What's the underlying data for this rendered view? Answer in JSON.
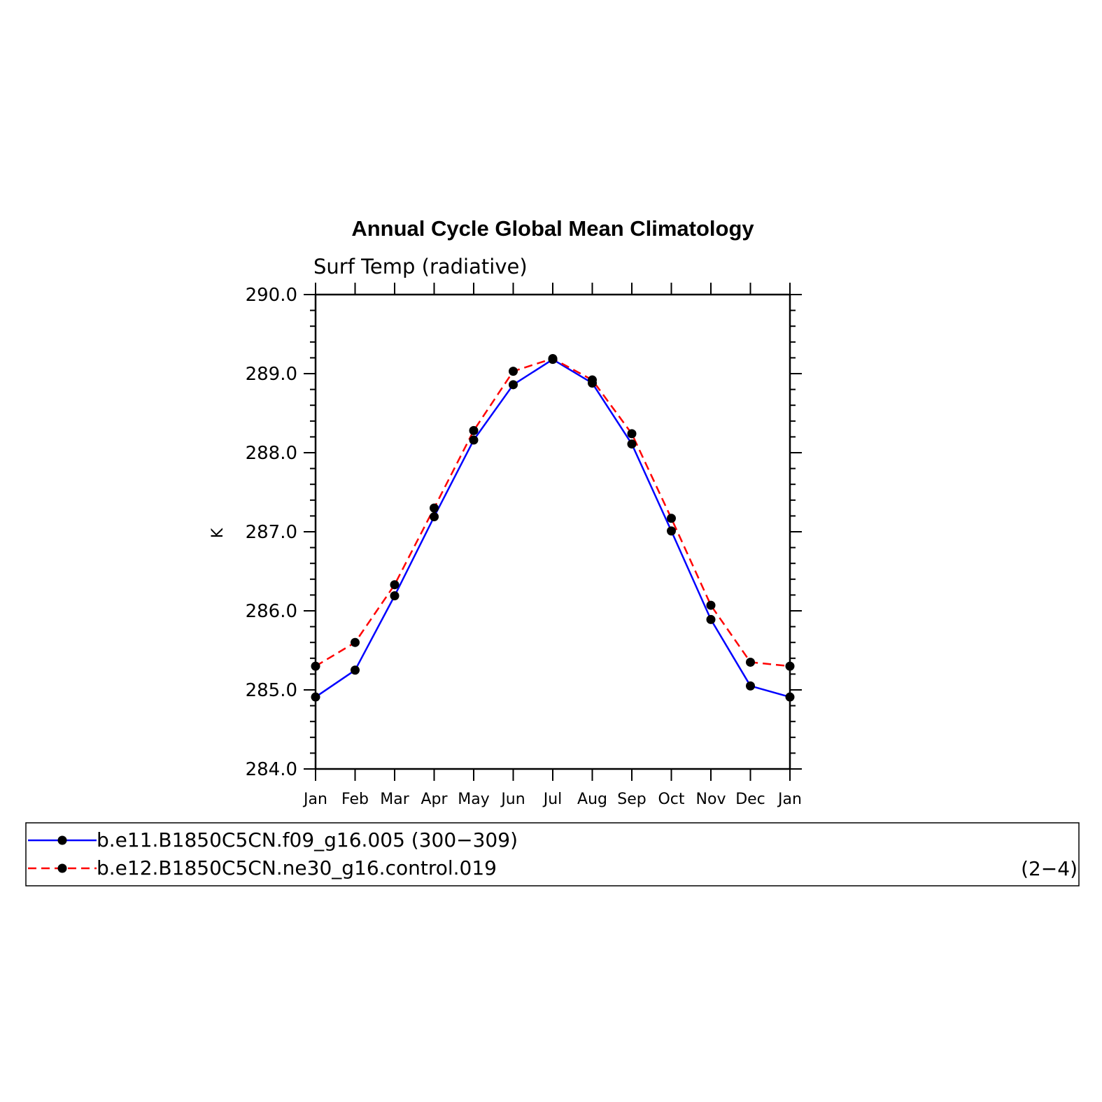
{
  "chart_data": {
    "type": "line",
    "title": "Annual Cycle Global Mean Climatology",
    "subtitle": "Surf Temp (radiative)",
    "ylabel": "K",
    "xlabel": "",
    "ylim": [
      284.0,
      290.0
    ],
    "yticks": [
      "290.0",
      "289.0",
      "288.0",
      "287.0",
      "286.0",
      "285.0",
      "284.0"
    ],
    "ytick_values": [
      290.0,
      289.0,
      288.0,
      287.0,
      286.0,
      285.0,
      284.0
    ],
    "categories": [
      "Jan",
      "Feb",
      "Mar",
      "Apr",
      "May",
      "Jun",
      "Jul",
      "Aug",
      "Sep",
      "Oct",
      "Nov",
      "Dec",
      "Jan"
    ],
    "series": [
      {
        "name": "b.e11.B1850C5CN.f09_g16.005 (300−309)",
        "color": "#0000ff",
        "dash": "solid",
        "values": [
          284.91,
          285.25,
          286.19,
          287.19,
          288.16,
          288.86,
          289.18,
          288.88,
          288.11,
          287.01,
          285.89,
          285.05,
          284.91
        ]
      },
      {
        "name": "b.e12.B1850C5CN.ne30_g16.control.019",
        "color": "#ff0000",
        "dash": "dashed",
        "values": [
          285.3,
          285.6,
          286.33,
          287.3,
          288.28,
          289.03,
          289.19,
          288.92,
          288.24,
          287.17,
          286.07,
          285.35,
          285.3
        ]
      }
    ],
    "legend_note": "(2−4)",
    "legend_position": "bottom"
  }
}
